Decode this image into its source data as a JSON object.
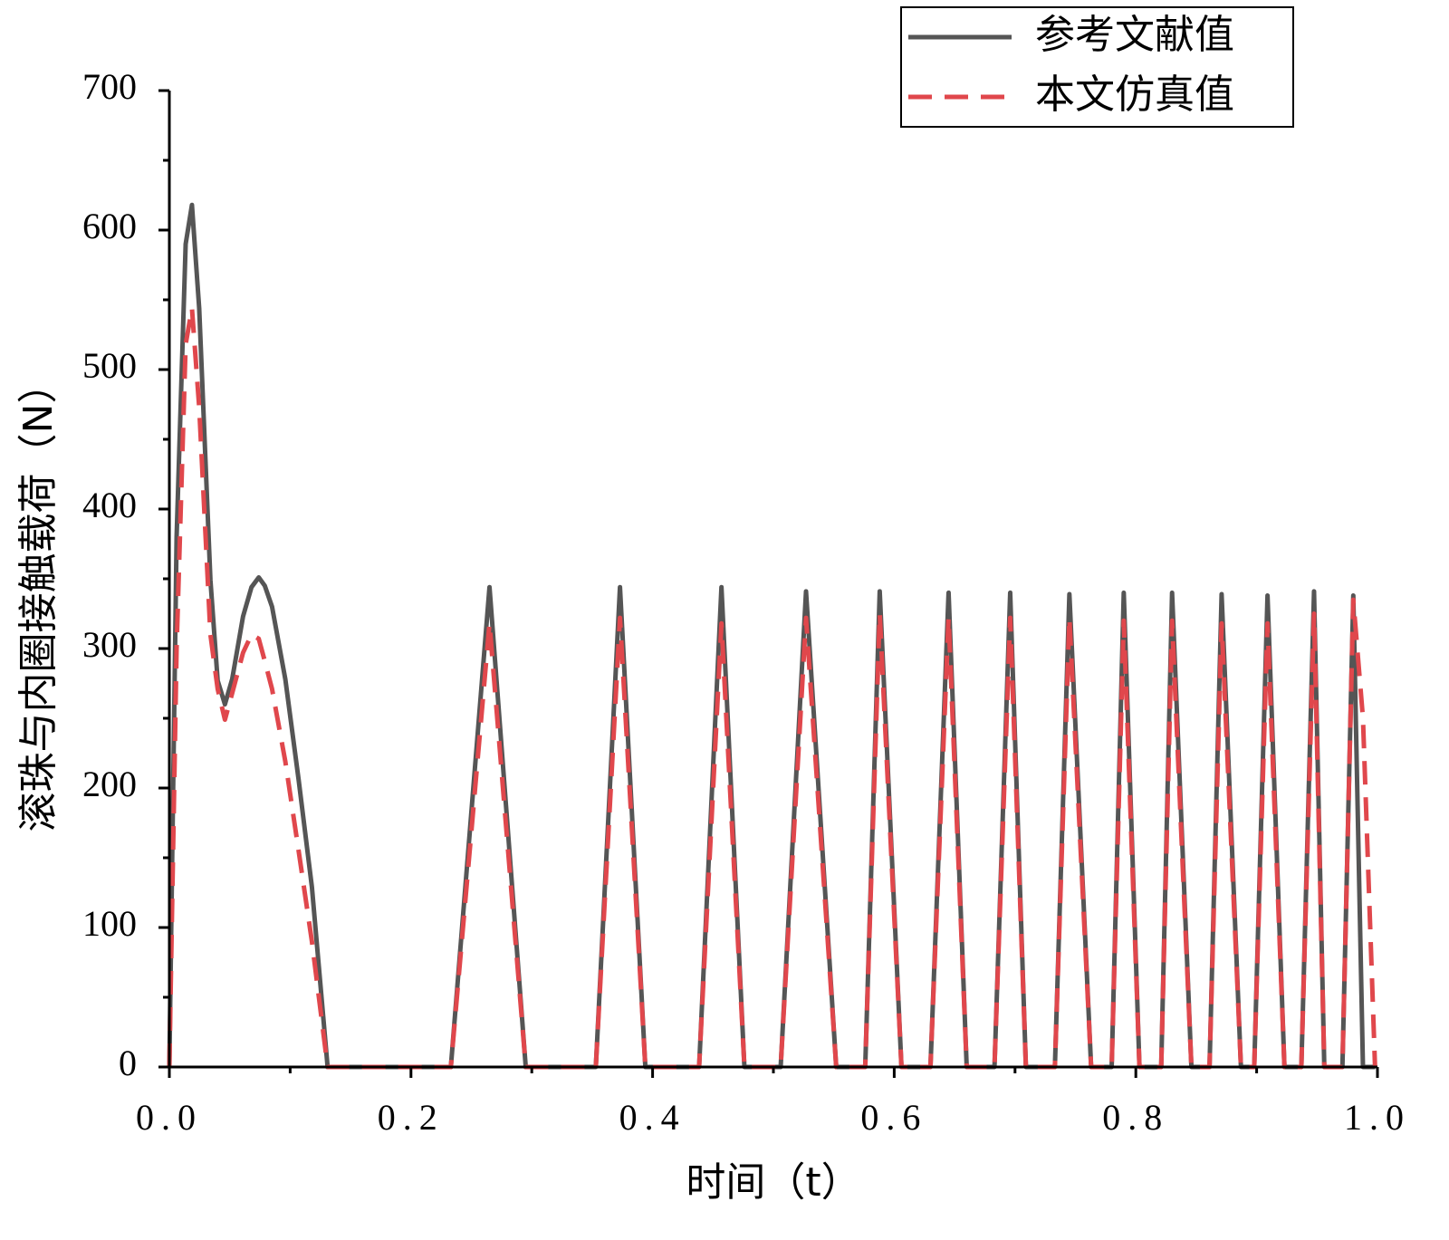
{
  "chart_data": {
    "type": "line",
    "xlabel": "时间（t）",
    "ylabel": "滚珠与内圈接触载荷（N）",
    "xlim": [
      0,
      1
    ],
    "ylim": [
      0,
      700
    ],
    "xticks": [
      {
        "value": 0,
        "label": "0.0"
      },
      {
        "value": 0.2,
        "label": "0.2"
      },
      {
        "value": 0.4,
        "label": "0.4"
      },
      {
        "value": 0.6,
        "label": "0.6"
      },
      {
        "value": 0.8,
        "label": "0.8"
      },
      {
        "value": 1,
        "label": "1.0"
      }
    ],
    "yticks": [
      0,
      100,
      200,
      300,
      400,
      500,
      600,
      700
    ],
    "xminorticks": [
      0.1,
      0.3,
      0.5,
      0.7,
      0.9
    ],
    "yminorticks": [
      50,
      150,
      250,
      350,
      450,
      550,
      650
    ],
    "legend": "upper right",
    "x": [
      0,
      0.006,
      0.0135,
      0.0187,
      0.0247,
      0.034,
      0.04,
      0.046,
      0.052,
      0.061,
      0.068,
      0.074,
      0.079,
      0.085,
      0.096,
      0.107,
      0.118,
      0.131,
      0.233,
      0.265,
      0.295,
      0.353,
      0.373,
      0.394,
      0.4385,
      0.457,
      0.476,
      0.506,
      0.527,
      0.552,
      0.576,
      0.588,
      0.606,
      0.63,
      0.645,
      0.66,
      0.683,
      0.696,
      0.709,
      0.733,
      0.745,
      0.763,
      0.78,
      0.79,
      0.803,
      0.821,
      0.83,
      0.846,
      0.861,
      0.871,
      0.887,
      0.898,
      0.909,
      0.923,
      0.937,
      0.9475,
      0.956,
      0.971,
      0.98,
      0.988,
      0.998
    ],
    "series": [
      {
        "name": "参考文献值",
        "color": "#555555",
        "dash": "solid",
        "values": [
          0,
          380,
          590,
          618,
          544,
          349,
          277,
          260,
          278,
          323,
          344,
          351,
          345,
          330,
          278,
          206,
          129,
          0,
          0,
          344,
          0,
          0,
          344,
          0,
          0,
          344,
          0,
          0,
          341,
          0,
          0,
          341,
          0,
          0,
          340,
          0,
          0,
          340,
          0,
          0,
          339,
          0,
          0,
          340,
          0,
          0,
          340,
          0,
          0,
          339,
          0,
          0,
          338,
          0,
          0,
          341,
          0,
          0,
          338,
          0,
          0
        ]
      },
      {
        "name": "本文仿真值",
        "color": "#e0474c",
        "dash": "dashed",
        "values": [
          0,
          300,
          518,
          544,
          473,
          310,
          271,
          249,
          268,
          297,
          310,
          307,
          291,
          271,
          219,
          155,
          90,
          0,
          0,
          318,
          0,
          0,
          322,
          0,
          0,
          318,
          0,
          0,
          322,
          0,
          0,
          325,
          0,
          0,
          322,
          0,
          0,
          322,
          0,
          0,
          322,
          0,
          0,
          320,
          0,
          0,
          320,
          0,
          0,
          318,
          0,
          0,
          318,
          0,
          0,
          325,
          0,
          0,
          335,
          250,
          0
        ]
      }
    ]
  }
}
